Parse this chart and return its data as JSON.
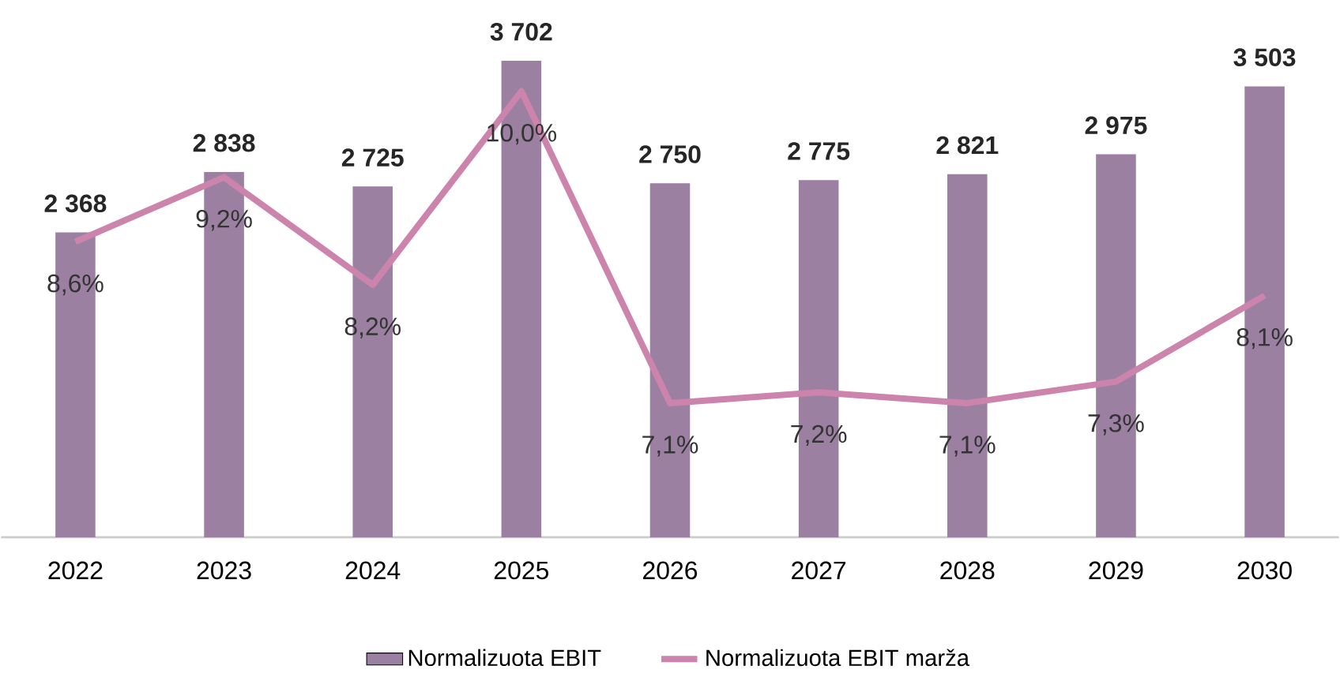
{
  "chart_data": {
    "type": "bar",
    "categories": [
      "2022",
      "2023",
      "2024",
      "2025",
      "2026",
      "2027",
      "2028",
      "2029",
      "2030"
    ],
    "series": [
      {
        "name": "Normalizuota EBIT",
        "color": "#9b80a2",
        "values": [
          2368,
          2838,
          2725,
          3702,
          2750,
          2775,
          2821,
          2975,
          3503
        ],
        "value_labels": [
          "2 368",
          "2 838",
          "2 725",
          "3 702",
          "2 750",
          "2 775",
          "2 821",
          "2 975",
          "3 503"
        ]
      },
      {
        "name": "Normalizuota EBIT marža",
        "type": "line",
        "axis": "y2",
        "color": "#cc84ad",
        "values": [
          8.6,
          9.2,
          8.2,
          10.0,
          7.1,
          7.2,
          7.1,
          7.3,
          8.1
        ],
        "value_labels": [
          "8,6%",
          "9,2%",
          "8,2%",
          "10,0%",
          "7,1%",
          "7,2%",
          "7,1%",
          "7,3%",
          "8,1%"
        ]
      }
    ],
    "legend": "bottom",
    "marker": "none",
    "line_style": "solid"
  }
}
